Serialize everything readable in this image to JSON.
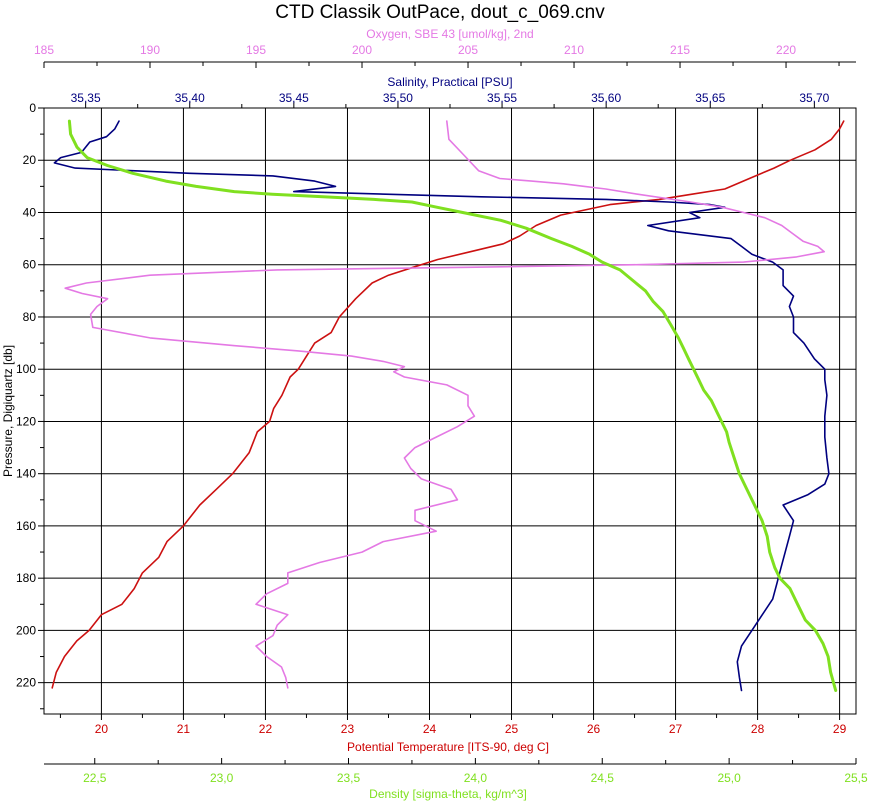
{
  "chart_data": {
    "type": "line",
    "title": "CTD Classik OutPace, dout_c_069.cnv",
    "grid": true,
    "axes": {
      "pressure": {
        "label": "Pressure, Digiquartz [db]",
        "range": [
          0,
          232
        ],
        "ticks": [
          0,
          20,
          40,
          60,
          80,
          100,
          120,
          140,
          160,
          180,
          200,
          220
        ],
        "tick_labels": [
          "0",
          "20",
          "40",
          "60",
          "80",
          "100",
          "120",
          "140",
          "160",
          "180",
          "200",
          "220"
        ],
        "color": "#000000",
        "position": "left"
      },
      "oxygen": {
        "label": "Oxygen, SBE 43 [umol/kg], 2nd",
        "range": [
          185,
          223.3
        ],
        "ticks": [
          185,
          190,
          195,
          200,
          205,
          210,
          215,
          220
        ],
        "tick_labels": [
          "185",
          "190",
          "195",
          "200",
          "205",
          "210",
          "215",
          "220"
        ],
        "color": "#e479e4",
        "position": "top-outer"
      },
      "salinity": {
        "label": "Salinity, Practical [PSU]",
        "range": [
          35.33,
          35.72
        ],
        "ticks": [
          35.35,
          35.4,
          35.45,
          35.5,
          35.55,
          35.6,
          35.65,
          35.7
        ],
        "tick_labels": [
          "35,35",
          "35,40",
          "35,45",
          "35,50",
          "35,55",
          "35,60",
          "35,65",
          "35,70"
        ],
        "color": "#00007f",
        "position": "top-inner"
      },
      "temperature": {
        "label": "Potential Temperature [ITS-90, deg C]",
        "range": [
          19.3,
          29.2
        ],
        "ticks": [
          20,
          21,
          22,
          23,
          24,
          25,
          26,
          27,
          28,
          29
        ],
        "tick_labels": [
          "20",
          "21",
          "22",
          "23",
          "24",
          "25",
          "26",
          "27",
          "28",
          "29"
        ],
        "color": "#cc0000",
        "position": "bottom-inner"
      },
      "density": {
        "label": "Density [sigma-theta, kg/m^3]",
        "range": [
          22.3,
          25.5
        ],
        "ticks": [
          22.5,
          23.0,
          23.5,
          24.0,
          24.5,
          25.0,
          25.5
        ],
        "tick_labels": [
          "22,5",
          "23,0",
          "23,5",
          "24,0",
          "24,5",
          "25,0",
          "25,5"
        ],
        "color": "#80e020",
        "position": "bottom-outer"
      }
    },
    "series": [
      {
        "axis": "temperature",
        "color": "#cc1111",
        "points": [
          [
            29.05,
            5
          ],
          [
            29.0,
            8
          ],
          [
            28.9,
            12
          ],
          [
            28.7,
            16
          ],
          [
            28.4,
            20
          ],
          [
            28.2,
            23
          ],
          [
            27.9,
            27
          ],
          [
            27.6,
            31
          ],
          [
            27.2,
            33
          ],
          [
            26.8,
            35
          ],
          [
            26.2,
            37
          ],
          [
            25.9,
            39
          ],
          [
            25.6,
            41
          ],
          [
            25.3,
            45
          ],
          [
            25.1,
            49
          ],
          [
            24.9,
            52
          ],
          [
            24.5,
            55
          ],
          [
            24.1,
            58
          ],
          [
            23.8,
            61
          ],
          [
            23.5,
            64
          ],
          [
            23.3,
            67
          ],
          [
            23.1,
            73
          ],
          [
            22.9,
            80
          ],
          [
            22.8,
            86
          ],
          [
            22.6,
            90
          ],
          [
            22.4,
            100
          ],
          [
            22.3,
            103
          ],
          [
            22.2,
            110
          ],
          [
            22.1,
            115
          ],
          [
            22.05,
            120
          ],
          [
            21.9,
            124
          ],
          [
            21.8,
            132
          ],
          [
            21.6,
            140
          ],
          [
            21.4,
            146
          ],
          [
            21.2,
            152
          ],
          [
            21.0,
            160
          ],
          [
            20.8,
            166
          ],
          [
            20.7,
            172
          ],
          [
            20.5,
            178
          ],
          [
            20.4,
            184
          ],
          [
            20.25,
            190
          ],
          [
            20.0,
            194
          ],
          [
            19.85,
            200
          ],
          [
            19.7,
            204
          ],
          [
            19.55,
            210
          ],
          [
            19.45,
            216
          ],
          [
            19.4,
            222
          ]
        ]
      },
      {
        "axis": "salinity",
        "color": "#00007f",
        "points": [
          [
            35.366,
            5
          ],
          [
            35.364,
            8
          ],
          [
            35.36,
            11
          ],
          [
            35.352,
            13
          ],
          [
            35.35,
            15
          ],
          [
            35.348,
            17
          ],
          [
            35.338,
            19
          ],
          [
            35.335,
            21
          ],
          [
            35.345,
            23
          ],
          [
            35.4,
            25
          ],
          [
            35.44,
            26
          ],
          [
            35.46,
            28
          ],
          [
            35.47,
            30
          ],
          [
            35.45,
            32
          ],
          [
            35.54,
            34
          ],
          [
            35.6,
            35
          ],
          [
            35.63,
            36
          ],
          [
            35.65,
            37
          ],
          [
            35.657,
            38
          ],
          [
            35.64,
            40
          ],
          [
            35.645,
            42
          ],
          [
            35.62,
            45
          ],
          [
            35.63,
            47
          ],
          [
            35.66,
            50
          ],
          [
            35.665,
            53
          ],
          [
            35.67,
            56
          ],
          [
            35.68,
            59
          ],
          [
            35.685,
            62
          ],
          [
            35.685,
            68
          ],
          [
            35.69,
            72
          ],
          [
            35.688,
            76
          ],
          [
            35.69,
            80
          ],
          [
            35.69,
            86
          ],
          [
            35.695,
            90
          ],
          [
            35.7,
            96
          ],
          [
            35.705,
            100
          ],
          [
            35.705,
            104
          ],
          [
            35.706,
            110
          ],
          [
            35.705,
            118
          ],
          [
            35.705,
            126
          ],
          [
            35.706,
            134
          ],
          [
            35.707,
            140
          ],
          [
            35.705,
            144
          ],
          [
            35.697,
            148
          ],
          [
            35.685,
            152
          ],
          [
            35.69,
            158
          ],
          [
            35.688,
            164
          ],
          [
            35.686,
            170
          ],
          [
            35.684,
            176
          ],
          [
            35.682,
            182
          ],
          [
            35.68,
            188
          ],
          [
            35.675,
            194
          ],
          [
            35.67,
            200
          ],
          [
            35.665,
            206
          ],
          [
            35.663,
            212
          ],
          [
            35.664,
            218
          ],
          [
            35.665,
            223
          ]
        ]
      },
      {
        "axis": "oxygen",
        "color": "#e479e4",
        "points": [
          [
            204.0,
            5
          ],
          [
            204.1,
            12
          ],
          [
            204.8,
            18
          ],
          [
            205.5,
            24
          ],
          [
            206.5,
            27
          ],
          [
            208.0,
            28
          ],
          [
            209.5,
            29
          ],
          [
            210.5,
            30
          ],
          [
            211.5,
            31
          ],
          [
            213.0,
            33
          ],
          [
            215.5,
            36
          ],
          [
            217.0,
            38
          ],
          [
            218.0,
            40
          ],
          [
            219.0,
            42
          ],
          [
            219.8,
            45
          ],
          [
            220.3,
            48
          ],
          [
            220.8,
            51
          ],
          [
            221.5,
            53
          ],
          [
            221.8,
            55
          ],
          [
            220.5,
            57
          ],
          [
            218.0,
            59
          ],
          [
            213.0,
            60
          ],
          [
            205.0,
            61
          ],
          [
            196.0,
            62
          ],
          [
            190.0,
            64
          ],
          [
            187.0,
            67
          ],
          [
            186.0,
            69
          ],
          [
            186.8,
            71
          ],
          [
            188.0,
            73
          ],
          [
            187.5,
            76
          ],
          [
            187.2,
            79
          ],
          [
            187.3,
            84
          ],
          [
            190.0,
            88
          ],
          [
            194.0,
            91
          ],
          [
            197.0,
            93
          ],
          [
            199.5,
            95
          ],
          [
            201.0,
            97
          ],
          [
            202.0,
            99
          ],
          [
            201.5,
            101
          ],
          [
            202.0,
            103
          ],
          [
            204.0,
            106
          ],
          [
            205.0,
            110
          ],
          [
            205.0,
            114
          ],
          [
            205.3,
            118
          ],
          [
            204.5,
            122
          ],
          [
            203.5,
            126
          ],
          [
            202.5,
            130
          ],
          [
            202.0,
            134
          ],
          [
            202.3,
            138
          ],
          [
            202.8,
            142
          ],
          [
            204.2,
            146
          ],
          [
            204.5,
            150
          ],
          [
            202.5,
            154
          ],
          [
            202.5,
            158
          ],
          [
            203.5,
            162
          ],
          [
            201.0,
            166
          ],
          [
            200.0,
            170
          ],
          [
            198.0,
            174
          ],
          [
            196.5,
            178
          ],
          [
            196.5,
            182
          ],
          [
            195.5,
            186
          ],
          [
            195.0,
            190
          ],
          [
            196.5,
            194
          ],
          [
            196.0,
            198
          ],
          [
            195.8,
            202
          ],
          [
            195.0,
            206
          ],
          [
            195.5,
            210
          ],
          [
            196.2,
            214
          ],
          [
            196.4,
            218
          ],
          [
            196.5,
            222
          ]
        ]
      },
      {
        "axis": "density",
        "color": "#80e020",
        "points": [
          [
            22.4,
            5
          ],
          [
            22.405,
            10
          ],
          [
            22.43,
            15
          ],
          [
            22.47,
            19
          ],
          [
            22.55,
            22
          ],
          [
            22.65,
            25
          ],
          [
            22.78,
            28
          ],
          [
            22.9,
            30
          ],
          [
            23.05,
            32
          ],
          [
            23.2,
            33
          ],
          [
            23.4,
            34
          ],
          [
            23.6,
            35
          ],
          [
            23.75,
            36
          ],
          [
            23.85,
            38
          ],
          [
            23.95,
            40
          ],
          [
            24.1,
            43
          ],
          [
            24.2,
            46
          ],
          [
            24.3,
            50
          ],
          [
            24.38,
            53
          ],
          [
            24.45,
            56
          ],
          [
            24.5,
            59
          ],
          [
            24.57,
            62
          ],
          [
            24.62,
            66
          ],
          [
            24.67,
            70
          ],
          [
            24.7,
            74
          ],
          [
            24.74,
            78
          ],
          [
            24.77,
            83
          ],
          [
            24.8,
            88
          ],
          [
            24.82,
            92
          ],
          [
            24.84,
            96
          ],
          [
            24.86,
            100
          ],
          [
            24.88,
            104
          ],
          [
            24.9,
            108
          ],
          [
            24.93,
            112
          ],
          [
            24.95,
            116
          ],
          [
            24.97,
            120
          ],
          [
            24.99,
            124
          ],
          [
            25.0,
            128
          ],
          [
            25.02,
            134
          ],
          [
            25.04,
            140
          ],
          [
            25.07,
            146
          ],
          [
            25.1,
            152
          ],
          [
            25.13,
            158
          ],
          [
            25.15,
            164
          ],
          [
            25.16,
            170
          ],
          [
            25.18,
            176
          ],
          [
            25.2,
            180
          ],
          [
            25.24,
            184
          ],
          [
            25.27,
            190
          ],
          [
            25.3,
            196
          ],
          [
            25.34,
            200
          ],
          [
            25.37,
            205
          ],
          [
            25.39,
            210
          ],
          [
            25.4,
            216
          ],
          [
            25.42,
            223
          ]
        ]
      }
    ]
  }
}
